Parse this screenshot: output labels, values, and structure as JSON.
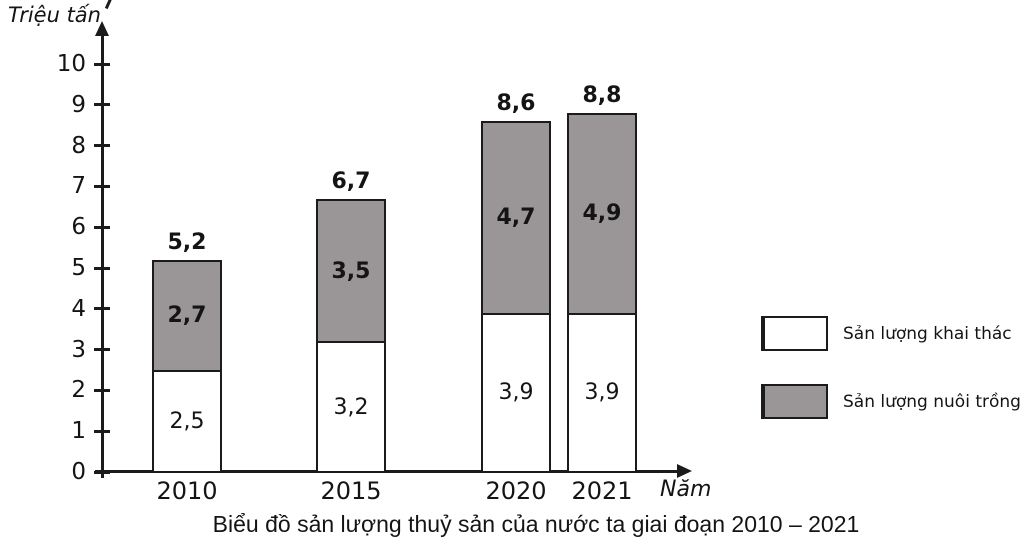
{
  "chart_data": {
    "type": "bar",
    "stacked": true,
    "title": "Biểu đồ sản lượng thuỷ sản của nước ta giai đoạn 2010 – 2021",
    "ylabel": "Triệu tấn",
    "xlabel": "Năm",
    "ylim": [
      0,
      10
    ],
    "yticks": [
      0,
      1,
      2,
      3,
      4,
      5,
      6,
      7,
      8,
      9,
      10
    ],
    "categories": [
      "2010",
      "2015",
      "2020",
      "2021"
    ],
    "series": [
      {
        "name": "Sản lượng khai thác",
        "color": "#ffffff",
        "values": [
          2.5,
          3.2,
          3.9,
          3.9
        ],
        "labels": [
          "2,5",
          "3,2",
          "3,9",
          "3,9"
        ],
        "label_bold": false
      },
      {
        "name": "Sản lượng nuôi trồng",
        "color": "#9a9697",
        "values": [
          2.7,
          3.5,
          4.7,
          4.9
        ],
        "labels": [
          "2,7",
          "3,5",
          "4,7",
          "4,9"
        ],
        "label_bold": true
      }
    ],
    "totals": {
      "values": [
        5.2,
        6.7,
        8.6,
        8.8
      ],
      "labels": [
        "5,2",
        "6,7",
        "8,6",
        "8,8"
      ]
    },
    "legend": {
      "position": "right"
    },
    "grid": false,
    "axis_color": "#1b1b1b"
  }
}
